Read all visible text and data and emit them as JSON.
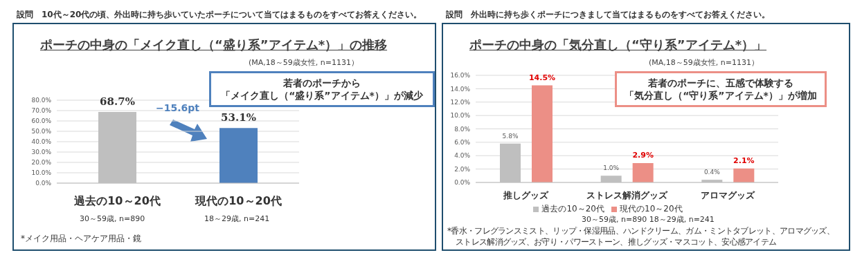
{
  "chart_data": [
    {
      "type": "bar",
      "title": "ポーチの中身の「メイク直し（“盛り系”アイテム*）」の推移",
      "subtitle": "(MA,18～59歳女性, n=1131）",
      "categories": [
        "過去の10～20代",
        "現代の10～20代"
      ],
      "values": [
        68.7,
        53.1
      ],
      "colors": [
        "#bfbfbf",
        "#4f81bd"
      ],
      "value_labels": [
        "68.7%",
        "53.1%"
      ],
      "ylim": [
        0,
        80
      ],
      "yticks": [
        {
          "value": 0,
          "label": "0.0%"
        },
        {
          "value": 10,
          "label": "10.0%"
        },
        {
          "value": 20,
          "label": "20.0%"
        },
        {
          "value": 30,
          "label": "30.0%"
        },
        {
          "value": 40,
          "label": "40.0%"
        },
        {
          "value": 50,
          "label": "50.0%"
        },
        {
          "value": 60,
          "label": "60.0%"
        },
        {
          "value": 70,
          "label": "70.0%"
        },
        {
          "value": 80,
          "label": "80.0%"
        }
      ],
      "grid": "y",
      "legend": false,
      "annotations": [
        "設問　10代～20代の頃、外出時に持ち歩いていたポーチについて当てはまるものをすべてお答えください。",
        "若者のポーチから「メイク直し（“盛り系”アイテム*）」が減少",
        "−15.6pt",
        "30～59歳, n=890",
        "18～29歳, n=241",
        "*メイク用品・ヘアケア用品・鏡"
      ]
    },
    {
      "type": "bar",
      "title": "ポーチの中身の「気分直し（“守り系”アイテム*）」",
      "subtitle": "(MA,18～59歳女性, n=1131）",
      "categories": [
        "推しグッズ",
        "ストレス解消グッズ",
        "アロマグッズ"
      ],
      "series": [
        {
          "name": "過去の10～20代",
          "color": "#bfbfbf",
          "values": [
            5.8,
            1.0,
            0.4
          ],
          "value_labels": [
            "5.8%",
            "1.0%",
            "0.4%"
          ]
        },
        {
          "name": "現代の10～20代",
          "color": "#ec8f86",
          "values": [
            14.5,
            2.9,
            2.1
          ],
          "value_labels": [
            "14.5%",
            "2.9%",
            "2.1%"
          ]
        }
      ],
      "ylim": [
        0,
        16
      ],
      "yticks": [
        {
          "value": 0,
          "label": "0.0%"
        },
        {
          "value": 2,
          "label": "2.0%"
        },
        {
          "value": 4,
          "label": "4.0%"
        },
        {
          "value": 6,
          "label": "6.0%"
        },
        {
          "value": 8,
          "label": "8.0%"
        },
        {
          "value": 10,
          "label": "10.0%"
        },
        {
          "value": 12,
          "label": "12.0%"
        },
        {
          "value": 14,
          "label": "14.0%"
        },
        {
          "value": 16,
          "label": "16.0%"
        }
      ],
      "grid": "y",
      "legend": "bottom",
      "annotations": [
        "設問　外出時に持ち歩くポーチにつきまして当てはまるものをすべてお答えください。",
        "若者のポーチに、五感で体験する「気分直し（“守り系”アイテム*）」が増加",
        "30～59歳, n=890  18～29歳, n=241",
        "*香水・フレグランスミスト、リップ・保湿用品、ハンドクリーム、ガム・ミントタブレット、アロマグッズ、ストレス解消グッズ、お守り・パワーストーン、推しグッズ・マスコット、安心感アイテム"
      ]
    }
  ]
}
